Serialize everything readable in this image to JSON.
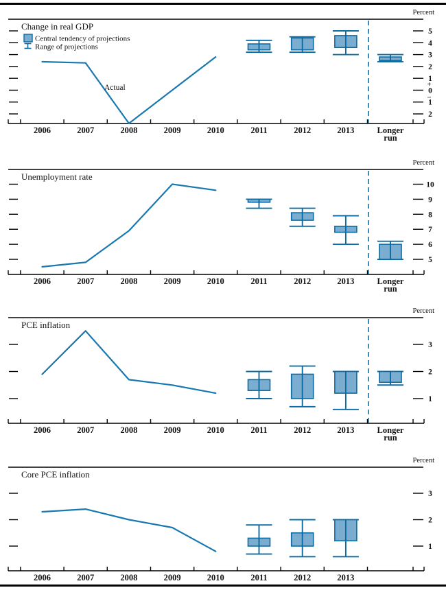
{
  "figure": {
    "source_style": "FOMC Summary of Economic Projections",
    "unit_label": "Percent"
  },
  "colors": {
    "line": "#1878b0",
    "box_fill": "#7aadd0",
    "box_stroke": "#0c6ba3",
    "dashed_divider": "#1878b0",
    "axis": "#000000",
    "text": "#111111"
  },
  "legend": {
    "items": [
      {
        "swatch": "central-tendency-box",
        "label": "Central tendency of projections"
      },
      {
        "swatch": "range-ibeam",
        "label": "Range of projections"
      }
    ]
  },
  "x_axis": {
    "years": [
      "2006",
      "2007",
      "2008",
      "2009",
      "2010",
      "2011",
      "2012",
      "2013"
    ],
    "longer_run_line1": "Longer",
    "longer_run_line2": "run"
  },
  "chart_data": [
    {
      "type": "line+box-whisker",
      "title": "Change in real GDP",
      "unit_label": "Percent",
      "yticks": [
        5,
        4,
        3,
        2,
        1,
        0,
        -1,
        -2
      ],
      "ylim": [
        -2.8,
        6.0
      ],
      "zero_sign_marks": true,
      "has_longer_run": true,
      "actual_series": {
        "label": "Actual",
        "years": [
          "2006",
          "2007",
          "2008",
          "2009",
          "2010"
        ],
        "values": [
          2.4,
          2.3,
          -2.8,
          0.0,
          2.8
        ]
      },
      "projections": [
        {
          "period": "2011",
          "central_tendency": [
            3.4,
            3.9
          ],
          "range": [
            3.2,
            4.2
          ]
        },
        {
          "period": "2012",
          "central_tendency": [
            3.4,
            4.4
          ],
          "range": [
            3.2,
            4.5
          ]
        },
        {
          "period": "2013",
          "central_tendency": [
            3.6,
            4.6
          ],
          "range": [
            3.0,
            5.0
          ]
        },
        {
          "period": "Longer run",
          "central_tendency": [
            2.5,
            2.8
          ],
          "range": [
            2.4,
            3.0
          ]
        }
      ]
    },
    {
      "type": "line+box-whisker",
      "title": "Unemployment rate",
      "unit_label": "Percent",
      "yticks": [
        10,
        9,
        8,
        7,
        6,
        5
      ],
      "ylim": [
        4.0,
        11.0
      ],
      "zero_sign_marks": false,
      "has_longer_run": true,
      "actual_series": {
        "label": "Actual",
        "years": [
          "2006",
          "2007",
          "2008",
          "2009",
          "2010"
        ],
        "values": [
          4.5,
          4.8,
          6.9,
          10.0,
          9.6
        ]
      },
      "projections": [
        {
          "period": "2011",
          "central_tendency": [
            8.8,
            9.0
          ],
          "range": [
            8.4,
            9.0
          ]
        },
        {
          "period": "2012",
          "central_tendency": [
            7.6,
            8.1
          ],
          "range": [
            7.2,
            8.4
          ]
        },
        {
          "period": "2013",
          "central_tendency": [
            6.8,
            7.2
          ],
          "range": [
            6.0,
            7.9
          ]
        },
        {
          "period": "Longer run",
          "central_tendency": [
            5.0,
            6.0
          ],
          "range": [
            5.0,
            6.2
          ]
        }
      ]
    },
    {
      "type": "line+box-whisker",
      "title": "PCE inflation",
      "unit_label": "Percent",
      "yticks": [
        3,
        2,
        1
      ],
      "ylim": [
        0.1,
        4.0
      ],
      "zero_sign_marks": false,
      "has_longer_run": true,
      "actual_series": {
        "label": "Actual",
        "years": [
          "2006",
          "2007",
          "2008",
          "2009",
          "2010"
        ],
        "values": [
          1.9,
          3.5,
          1.7,
          1.5,
          1.2
        ]
      },
      "projections": [
        {
          "period": "2011",
          "central_tendency": [
            1.3,
            1.7
          ],
          "range": [
            1.0,
            2.0
          ]
        },
        {
          "period": "2012",
          "central_tendency": [
            1.0,
            1.9
          ],
          "range": [
            0.7,
            2.2
          ]
        },
        {
          "period": "2013",
          "central_tendency": [
            1.2,
            2.0
          ],
          "range": [
            0.6,
            2.0
          ]
        },
        {
          "period": "Longer run",
          "central_tendency": [
            1.6,
            2.0
          ],
          "range": [
            1.5,
            2.0
          ]
        }
      ]
    },
    {
      "type": "line+box-whisker",
      "title": "Core PCE inflation",
      "unit_label": "Percent",
      "yticks": [
        3,
        2,
        1
      ],
      "ylim": [
        0.1,
        4.0
      ],
      "zero_sign_marks": false,
      "has_longer_run": false,
      "actual_series": {
        "label": "Actual",
        "years": [
          "2006",
          "2007",
          "2008",
          "2009",
          "2010"
        ],
        "values": [
          2.3,
          2.4,
          2.0,
          1.7,
          0.8
        ]
      },
      "projections": [
        {
          "period": "2011",
          "central_tendency": [
            1.0,
            1.3
          ],
          "range": [
            0.7,
            1.8
          ]
        },
        {
          "period": "2012",
          "central_tendency": [
            1.0,
            1.5
          ],
          "range": [
            0.6,
            2.0
          ]
        },
        {
          "period": "2013",
          "central_tendency": [
            1.2,
            2.0
          ],
          "range": [
            0.6,
            2.0
          ]
        }
      ]
    }
  ]
}
